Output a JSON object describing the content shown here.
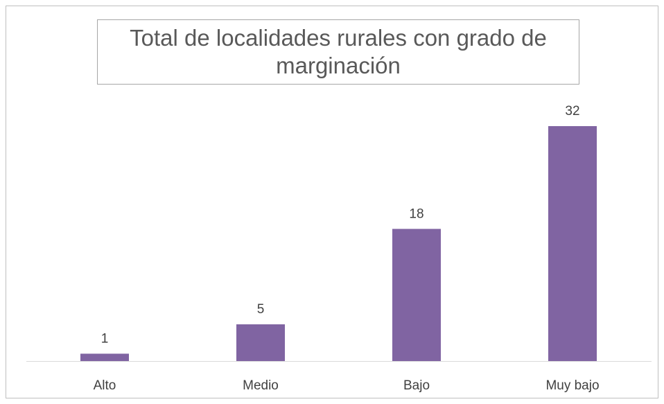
{
  "chart_data": {
    "type": "bar",
    "title": "Total de localidades rurales con grado de marginación",
    "categories": [
      "Alto",
      "Medio",
      "Bajo",
      "Muy bajo"
    ],
    "values": [
      1,
      5,
      18,
      32
    ],
    "color": "#8064a2"
  }
}
